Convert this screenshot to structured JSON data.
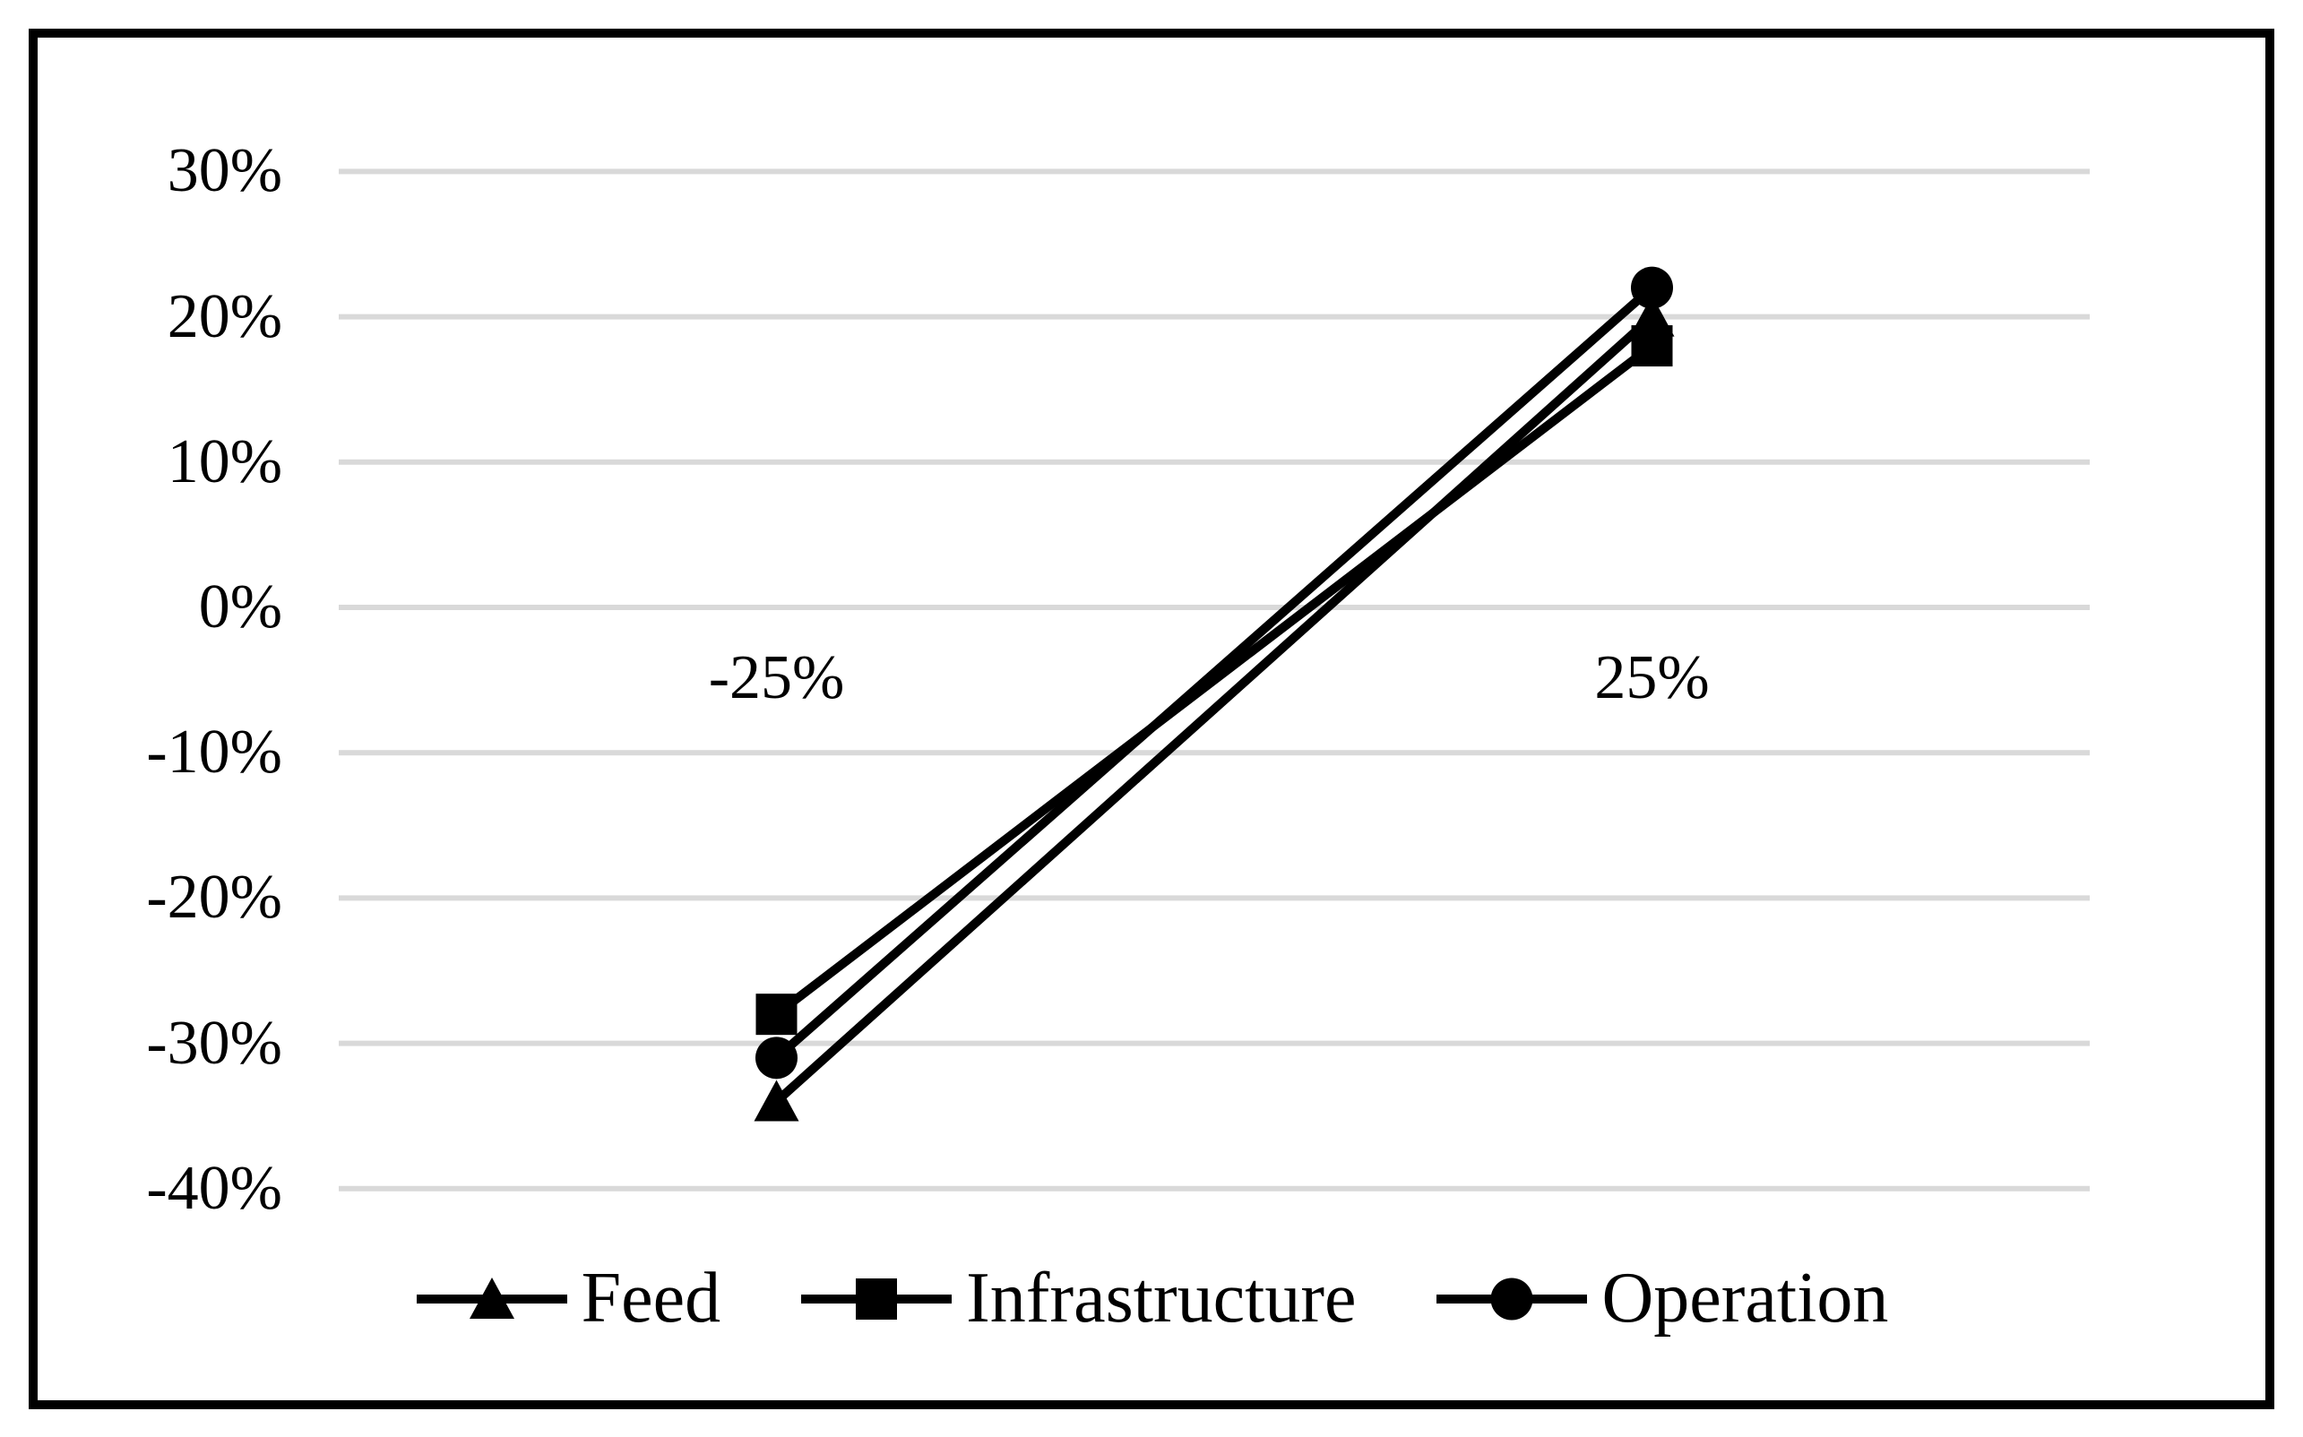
{
  "chart_data": {
    "type": "line",
    "title": "",
    "xlabel": "",
    "ylabel": "",
    "x_categories": [
      "-25%",
      "25%"
    ],
    "y_tick_labels": [
      "30%",
      "20%",
      "10%",
      "0%",
      "-10%",
      "-20%",
      "-30%",
      "-40%"
    ],
    "y_tick_values": [
      30,
      20,
      10,
      0,
      -10,
      -20,
      -30,
      -40
    ],
    "ylim": [
      -40,
      30
    ],
    "grid": true,
    "legend_position": "bottom",
    "series": [
      {
        "name": "Feed",
        "marker": "triangle",
        "values": [
          -34,
          20
        ]
      },
      {
        "name": "Infrastructure",
        "marker": "square",
        "values": [
          -28,
          18
        ]
      },
      {
        "name": "Operation",
        "marker": "circle",
        "values": [
          -31,
          22
        ]
      }
    ],
    "colors": {
      "line": "#000000",
      "marker": "#000000",
      "text": "#000000",
      "grid": "#d9d9d9",
      "background": "#ffffff",
      "frame_border": "#000000"
    }
  }
}
